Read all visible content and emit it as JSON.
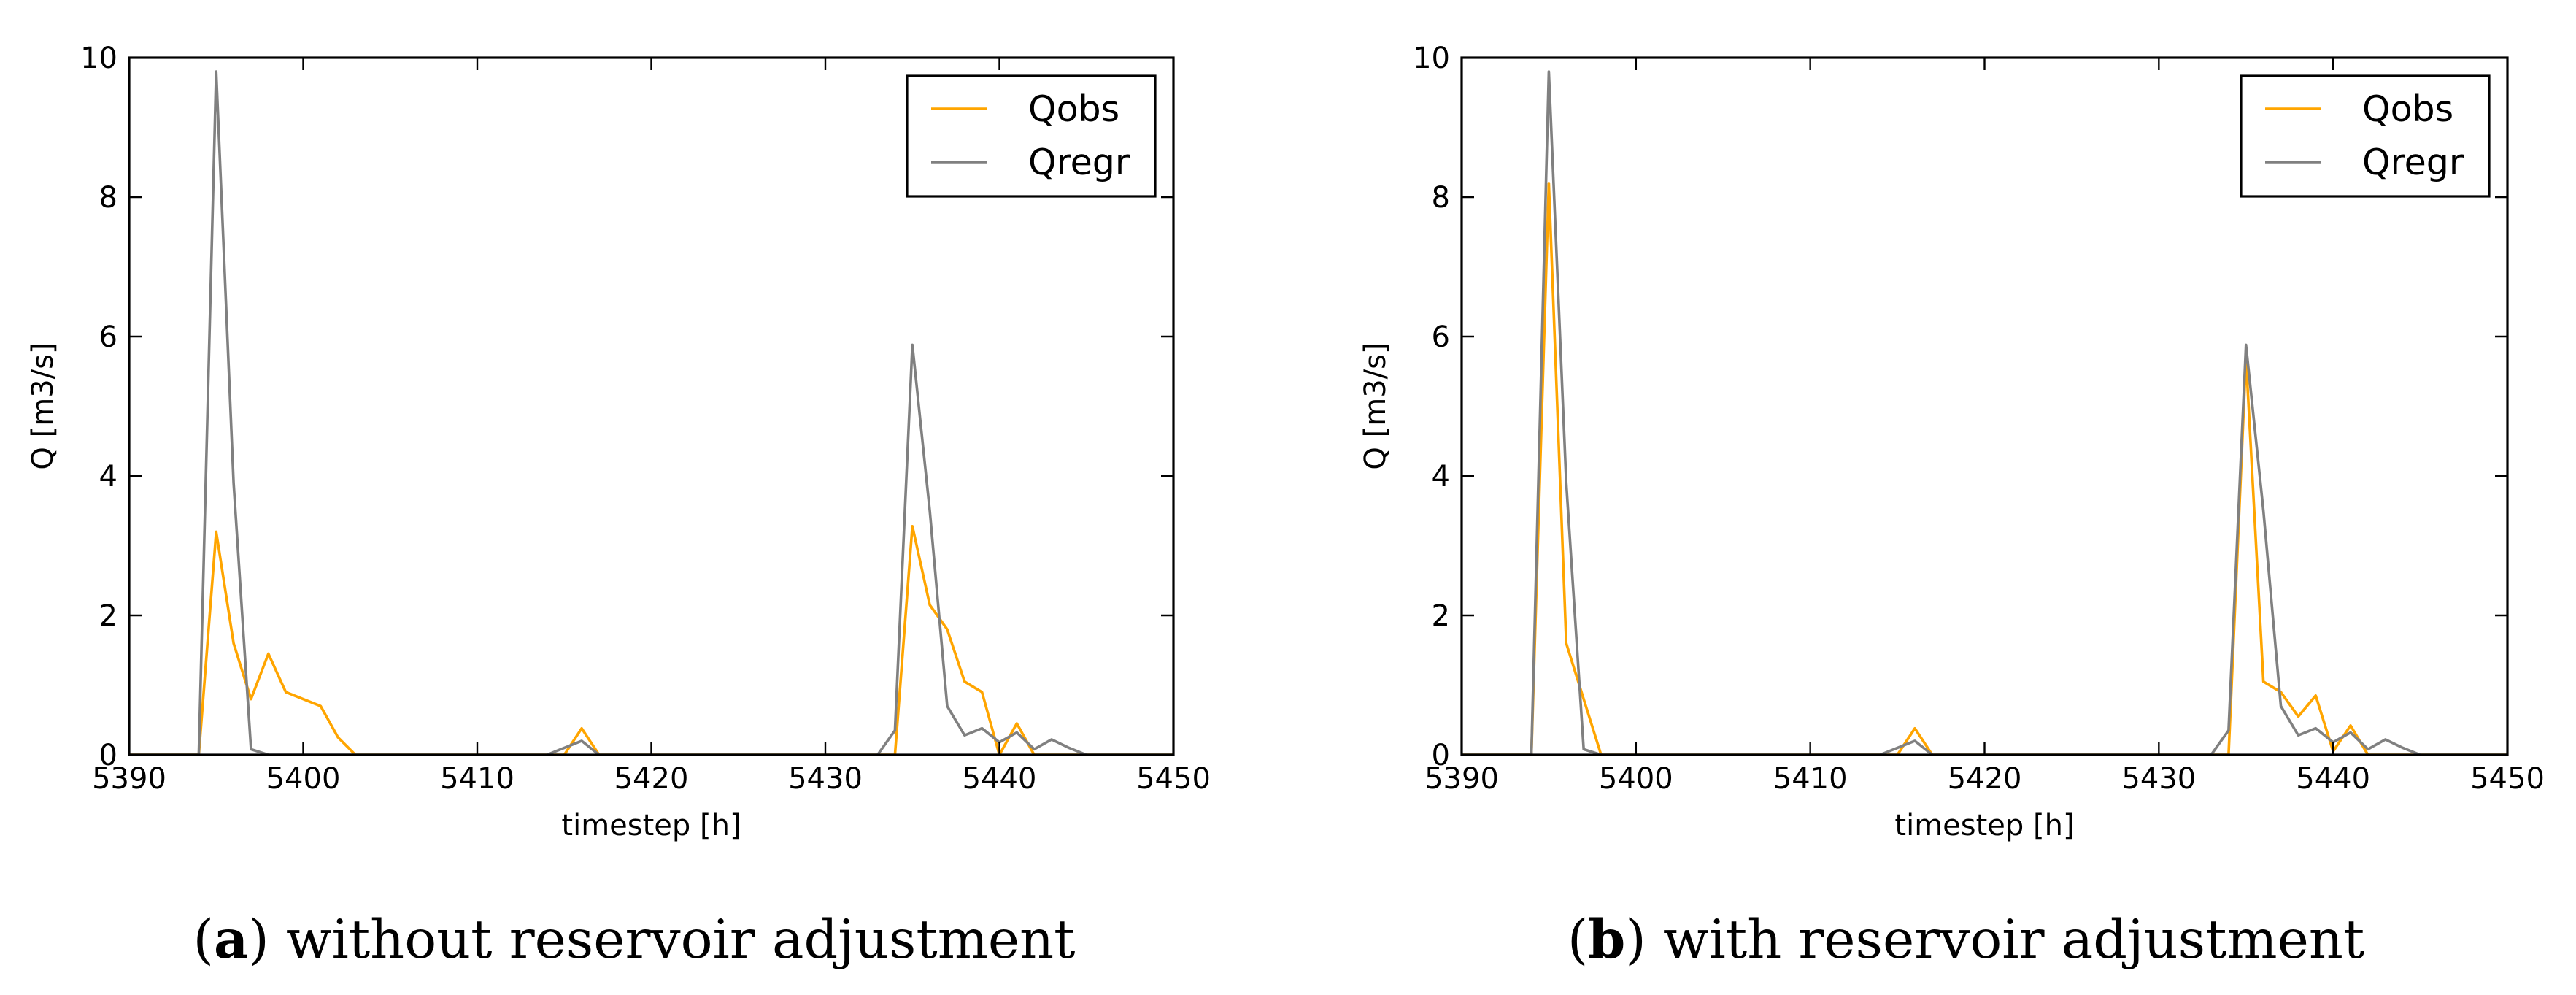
{
  "chart_data": [
    {
      "type": "line",
      "caption": {
        "open": "(",
        "letter": "a",
        "text": ") without reservoir adjustment"
      },
      "xlabel": "timestep [h]",
      "ylabel": "Q [m3/s]",
      "xlim": [
        5390,
        5450
      ],
      "ylim": [
        0,
        10
      ],
      "xticks": [
        5390,
        5400,
        5410,
        5420,
        5430,
        5440,
        5450
      ],
      "yticks": [
        0,
        2,
        4,
        6,
        8,
        10
      ],
      "legend_position": "upper right",
      "series": [
        {
          "name": "Qobs",
          "color": "#FFA500",
          "points": [
            [
              5390,
              0
            ],
            [
              5394,
              0
            ],
            [
              5395,
              3.2
            ],
            [
              5396,
              1.6
            ],
            [
              5397,
              0.8
            ],
            [
              5398,
              1.45
            ],
            [
              5399,
              0.9
            ],
            [
              5401,
              0.7
            ],
            [
              5402,
              0.25
            ],
            [
              5403,
              0
            ],
            [
              5415,
              0
            ],
            [
              5416,
              0.38
            ],
            [
              5417,
              0
            ],
            [
              5434,
              0
            ],
            [
              5435,
              3.28
            ],
            [
              5436,
              2.15
            ],
            [
              5437,
              1.8
            ],
            [
              5438,
              1.05
            ],
            [
              5439,
              0.9
            ],
            [
              5440,
              0
            ],
            [
              5441,
              0.45
            ],
            [
              5442,
              0
            ],
            [
              5450,
              0
            ]
          ]
        },
        {
          "name": "Qregr",
          "color": "#808080",
          "points": [
            [
              5390,
              0
            ],
            [
              5394,
              0
            ],
            [
              5395,
              9.8
            ],
            [
              5396,
              3.9
            ],
            [
              5397,
              0.08
            ],
            [
              5398,
              0
            ],
            [
              5414,
              0
            ],
            [
              5416,
              0.2
            ],
            [
              5417,
              0
            ],
            [
              5433,
              0
            ],
            [
              5434,
              0.35
            ],
            [
              5435,
              5.88
            ],
            [
              5436,
              3.5
            ],
            [
              5437,
              0.7
            ],
            [
              5438,
              0.28
            ],
            [
              5439,
              0.38
            ],
            [
              5440,
              0.18
            ],
            [
              5441,
              0.32
            ],
            [
              5442,
              0.08
            ],
            [
              5443,
              0.22
            ],
            [
              5444,
              0.1
            ],
            [
              5445,
              0
            ],
            [
              5450,
              0
            ]
          ]
        }
      ]
    },
    {
      "type": "line",
      "caption": {
        "open": "(",
        "letter": "b",
        "text": ") with reservoir adjustment"
      },
      "xlabel": "timestep [h]",
      "ylabel": "Q [m3/s]",
      "xlim": [
        5390,
        5450
      ],
      "ylim": [
        0,
        10
      ],
      "xticks": [
        5390,
        5400,
        5410,
        5420,
        5430,
        5440,
        5450
      ],
      "yticks": [
        0,
        2,
        4,
        6,
        8,
        10
      ],
      "legend_position": "upper right",
      "series": [
        {
          "name": "Qobs",
          "color": "#FFA500",
          "points": [
            [
              5390,
              0
            ],
            [
              5394,
              0
            ],
            [
              5395,
              8.2
            ],
            [
              5396,
              1.6
            ],
            [
              5397,
              0.8
            ],
            [
              5398,
              0
            ],
            [
              5415,
              0
            ],
            [
              5416,
              0.38
            ],
            [
              5417,
              0
            ],
            [
              5434,
              0
            ],
            [
              5435,
              5.7
            ],
            [
              5436,
              1.05
            ],
            [
              5437,
              0.9
            ],
            [
              5438,
              0.55
            ],
            [
              5439,
              0.85
            ],
            [
              5440,
              0.05
            ],
            [
              5441,
              0.42
            ],
            [
              5442,
              0
            ],
            [
              5450,
              0
            ]
          ]
        },
        {
          "name": "Qregr",
          "color": "#808080",
          "points": [
            [
              5390,
              0
            ],
            [
              5394,
              0
            ],
            [
              5395,
              9.8
            ],
            [
              5396,
              3.9
            ],
            [
              5397,
              0.08
            ],
            [
              5398,
              0
            ],
            [
              5414,
              0
            ],
            [
              5416,
              0.2
            ],
            [
              5417,
              0
            ],
            [
              5433,
              0
            ],
            [
              5434,
              0.35
            ],
            [
              5435,
              5.88
            ],
            [
              5436,
              3.5
            ],
            [
              5437,
              0.7
            ],
            [
              5438,
              0.28
            ],
            [
              5439,
              0.38
            ],
            [
              5440,
              0.18
            ],
            [
              5441,
              0.32
            ],
            [
              5442,
              0.08
            ],
            [
              5443,
              0.22
            ],
            [
              5444,
              0.1
            ],
            [
              5445,
              0
            ],
            [
              5450,
              0
            ]
          ]
        }
      ]
    }
  ]
}
